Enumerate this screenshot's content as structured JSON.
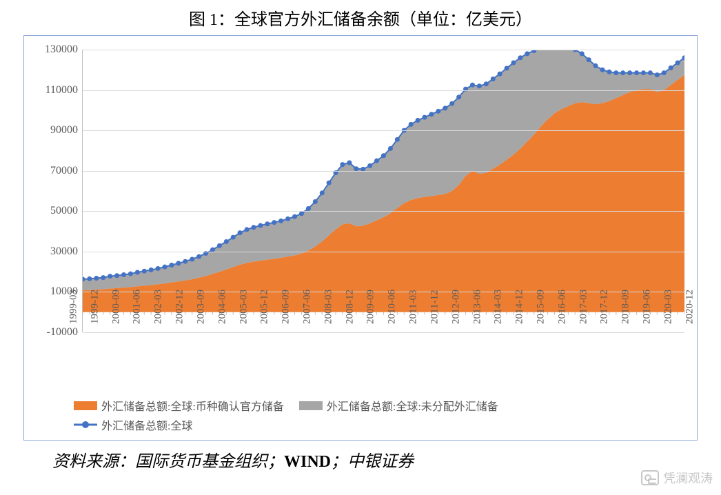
{
  "title": "图 1：全球官方外汇储备余额（单位：亿美元）",
  "source_prefix": "资料来源：国际货币基金组织；",
  "source_wind": "WIND",
  "source_suffix": "；中银证券",
  "watermark": "凭澜观涛",
  "chart": {
    "type": "stacked-area-with-line",
    "background_color": "#ffffff",
    "border_color": "#8faadc",
    "ylim": [
      -10000,
      130000
    ],
    "ytick_step": 20000,
    "yticks": [
      -10000,
      10000,
      30000,
      50000,
      70000,
      90000,
      110000,
      130000
    ],
    "grid_color": "#d9d9d9",
    "axis_color": "#bfbfbf",
    "tick_fontsize": 16,
    "tick_color": "#595959",
    "x_labels_visible": [
      "1999-03",
      "1999-12",
      "2000-09",
      "2001-06",
      "2002-03",
      "2002-12",
      "2003-09",
      "2004-06",
      "2005-03",
      "2005-12",
      "2006-09",
      "2007-06",
      "2008-03",
      "2008-12",
      "2009-09",
      "2010-06",
      "2011-03",
      "2011-12",
      "2012-09",
      "2013-06",
      "2014-03",
      "2014-12",
      "2015-09",
      "2016-06",
      "2017-03",
      "2017-12",
      "2018-09",
      "2019-06",
      "2020-03",
      "2020-12"
    ],
    "n_points": 89,
    "series": {
      "confirmed": {
        "label": "外汇储备总额:全球:币种确认官方储备",
        "color": "#ed7d31",
        "values": [
          10800,
          10900,
          11100,
          11300,
          11700,
          11900,
          12100,
          12400,
          12800,
          13100,
          13400,
          13800,
          14200,
          14700,
          15200,
          15700,
          16300,
          17000,
          17900,
          18900,
          20000,
          21100,
          22300,
          23500,
          24400,
          25000,
          25500,
          26000,
          26400,
          26900,
          27500,
          28100,
          29000,
          30500,
          32500,
          35000,
          38000,
          41000,
          43500,
          44000,
          42500,
          42800,
          44000,
          45500,
          47000,
          49000,
          51500,
          54000,
          55500,
          56500,
          57000,
          57500,
          58000,
          58500,
          60000,
          63000,
          67500,
          70000,
          68500,
          69000,
          71000,
          73000,
          75500,
          78000,
          81000,
          84500,
          88000,
          92000,
          95500,
          98500,
          100500,
          102000,
          103500,
          104000,
          103500,
          103000,
          103500,
          104500,
          106000,
          107500,
          109000,
          110000,
          110500,
          110500,
          109000,
          110000,
          112500,
          115000,
          117500
        ]
      },
      "unallocated": {
        "label": "外汇储备总额:全球:未分配外汇储备",
        "color": "#a6a6a6",
        "values": [
          5500,
          5600,
          5700,
          5800,
          6100,
          6200,
          6400,
          6600,
          6900,
          7200,
          7500,
          7800,
          8200,
          8600,
          9000,
          9400,
          9900,
          10500,
          11200,
          12000,
          12900,
          13800,
          14800,
          15800,
          16500,
          17000,
          17400,
          17700,
          18000,
          18300,
          18700,
          19200,
          19800,
          20800,
          22200,
          24000,
          26000,
          28000,
          29600,
          30000,
          28500,
          28000,
          28500,
          29500,
          30500,
          32000,
          34000,
          36000,
          37500,
          38500,
          39500,
          40500,
          41500,
          42500,
          43300,
          43500,
          43000,
          42500,
          43500,
          44000,
          44500,
          45000,
          45300,
          45500,
          45000,
          43500,
          41500,
          39000,
          36500,
          34000,
          31500,
          29000,
          26500,
          24000,
          21500,
          19000,
          16500,
          14500,
          12500,
          11000,
          9500,
          8500,
          8000,
          8000,
          8500,
          8500,
          8500,
          8500,
          8500
        ]
      },
      "total_line": {
        "label": "外汇储备总额:全球",
        "color": "#4472c4",
        "marker": "circle",
        "marker_size": 7,
        "line_width": 2
      }
    },
    "legend": {
      "fontsize": 16,
      "color": "#595959",
      "items": [
        {
          "key": "confirmed",
          "type": "swatch"
        },
        {
          "key": "unallocated",
          "type": "swatch"
        },
        {
          "key": "total_line",
          "type": "line-marker"
        }
      ]
    }
  }
}
